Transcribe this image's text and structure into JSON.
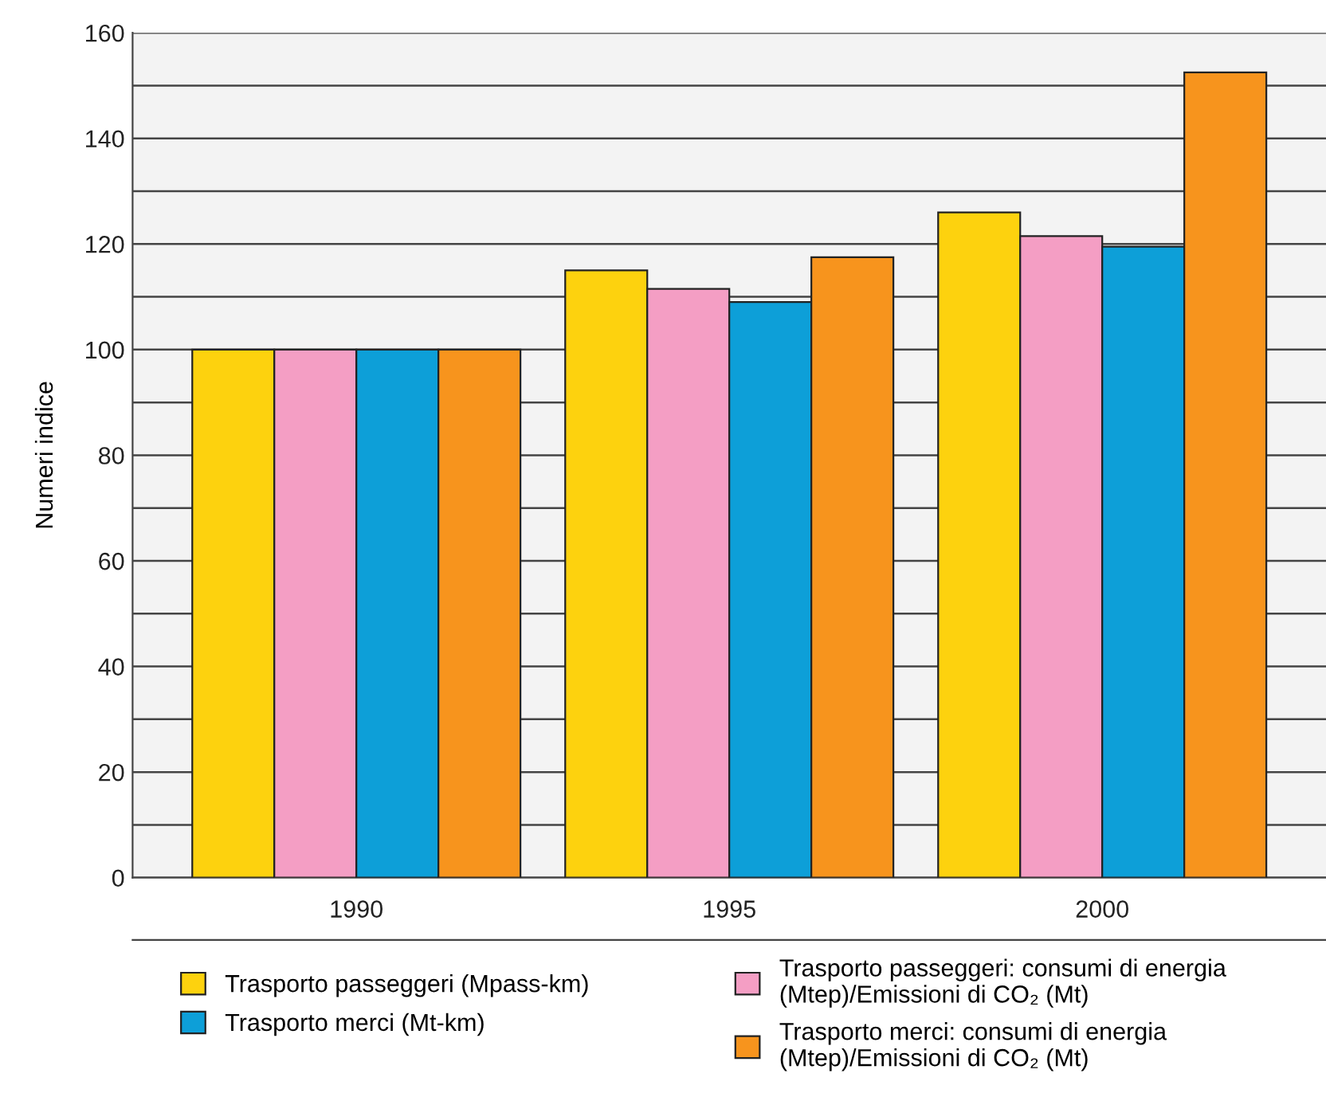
{
  "chart_data": {
    "type": "bar",
    "ylabel": "Numeri indice",
    "categories": [
      "1990",
      "1995",
      "2000"
    ],
    "series": [
      {
        "name": "Trasporto passeggeri (Mpass-km)",
        "color": "#fdd20e",
        "values": [
          100,
          115,
          126
        ]
      },
      {
        "name": "Trasporto passeggeri: consumi di energia\n(Mtep)/Emissioni di CO₂ (Mt)",
        "color": "#f49ec4",
        "values": [
          100,
          111.5,
          121.5
        ]
      },
      {
        "name": "Trasporto merci (Mt-km)",
        "color": "#0d9fd8",
        "values": [
          100,
          109,
          119.5
        ]
      },
      {
        "name": "Trasporto merci: consumi di energia\n(Mtep)/Emissioni di CO₂ (Mt)",
        "color": "#f7941d",
        "values": [
          100,
          117.5,
          152.5
        ]
      }
    ],
    "ylim": [
      0,
      160
    ],
    "yticks": [
      0,
      {
        "value": 10,
        "label": null
      },
      20,
      {
        "value": 30,
        "label": null
      },
      40,
      {
        "value": 50,
        "label": null
      },
      60,
      {
        "value": 70,
        "label": null
      },
      80,
      {
        "value": 90,
        "label": null
      },
      100,
      {
        "value": 110,
        "label": null
      },
      120,
      {
        "value": 130,
        "label": null
      },
      140,
      {
        "value": 150,
        "label": null
      },
      160
    ],
    "grid": "y",
    "legend": "bottom"
  }
}
